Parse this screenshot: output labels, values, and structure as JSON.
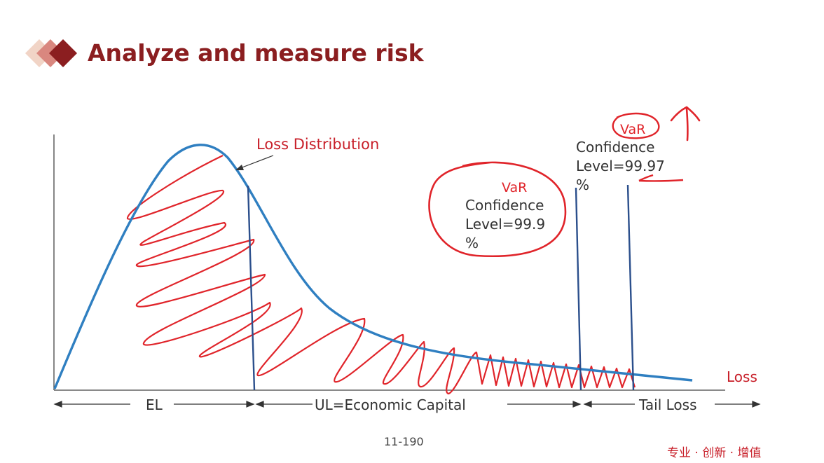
{
  "slide": {
    "title": "Analyze and measure risk",
    "page_number": "11-190",
    "footer_brand": "专业 · 创新 · 增值"
  },
  "diagram": {
    "curve_label": "Loss Distribution",
    "x_axis_label": "Loss",
    "var_low": {
      "tag": "VaR",
      "line1": "Confidence",
      "line2": "Level=99.9",
      "line3": "%"
    },
    "var_high": {
      "tag": "VaR",
      "line1": "Confidence",
      "line2": "Level=99.97",
      "line3": "%"
    },
    "segments": {
      "el": "EL",
      "ul": "UL=Economic Capital",
      "tail": "Tail Loss"
    },
    "colors": {
      "curve": "#2f7fc1",
      "annotation": "#e0242a",
      "title": "#8b1e20",
      "axis": "#333333",
      "marker": "#2b4f8c"
    }
  }
}
